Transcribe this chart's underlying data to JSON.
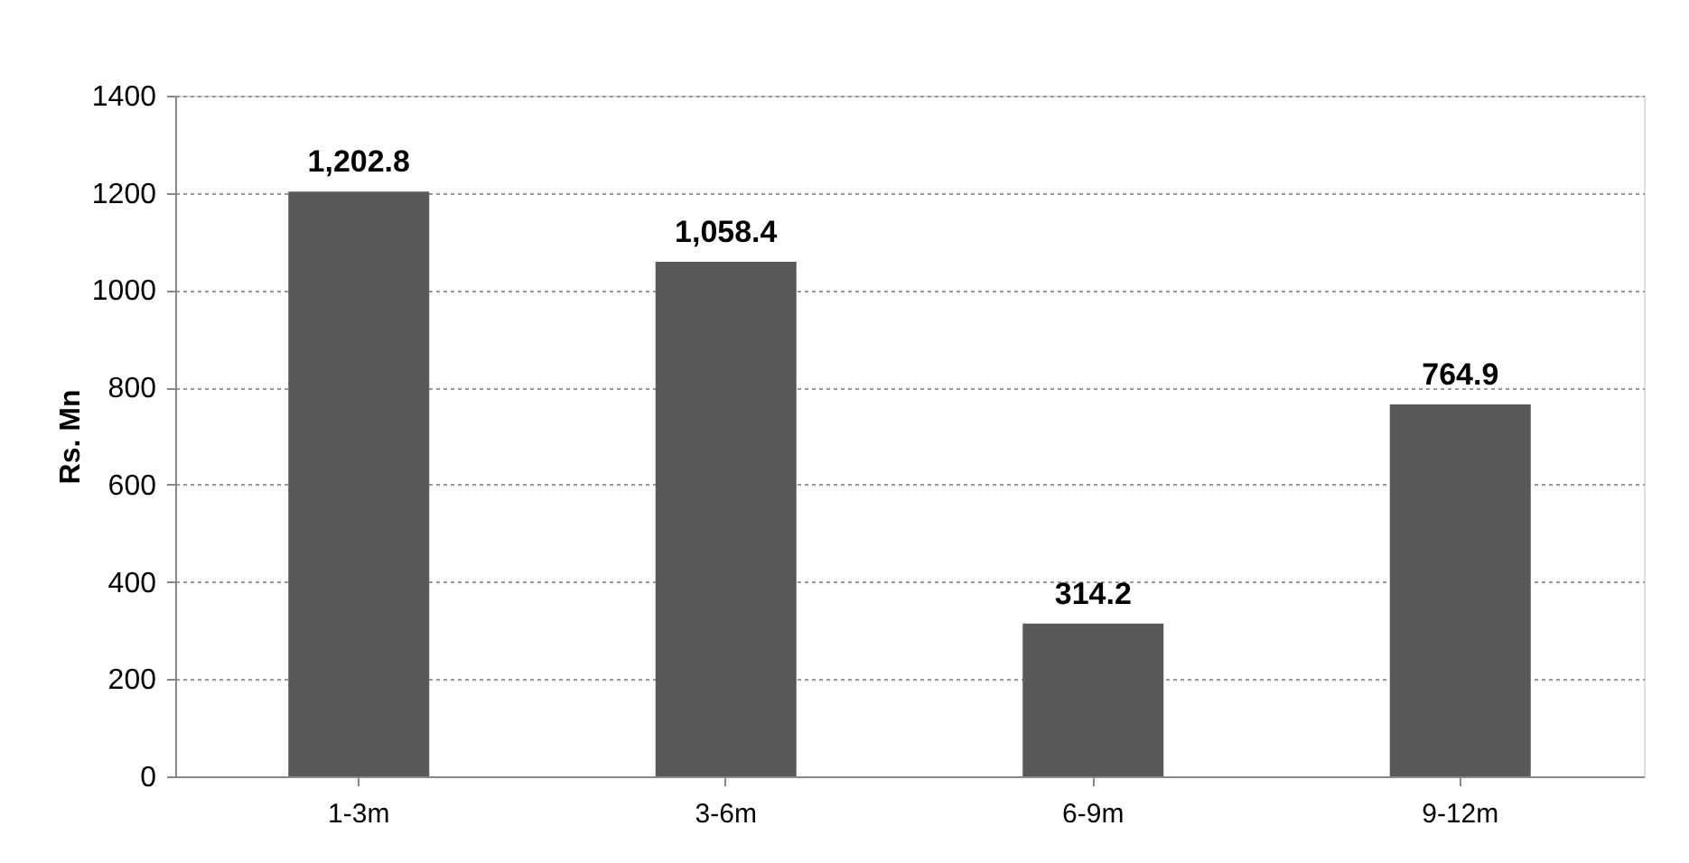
{
  "chart_data": {
    "type": "bar",
    "categories": [
      "1-3m",
      "3-6m",
      "6-9m",
      "9-12m"
    ],
    "values": [
      1202.8,
      1058.4,
      314.2,
      764.9
    ],
    "color": "#595959",
    "value_labels": [
      "1,202.8",
      "1,058.4",
      "314.2",
      "764.9"
    ],
    "ylabel": "Rs. Mn",
    "ylim": [
      0,
      1400
    ],
    "yticks": [
      0,
      200,
      400,
      600,
      800,
      1000,
      1200,
      1400
    ],
    "grid": "y"
  }
}
